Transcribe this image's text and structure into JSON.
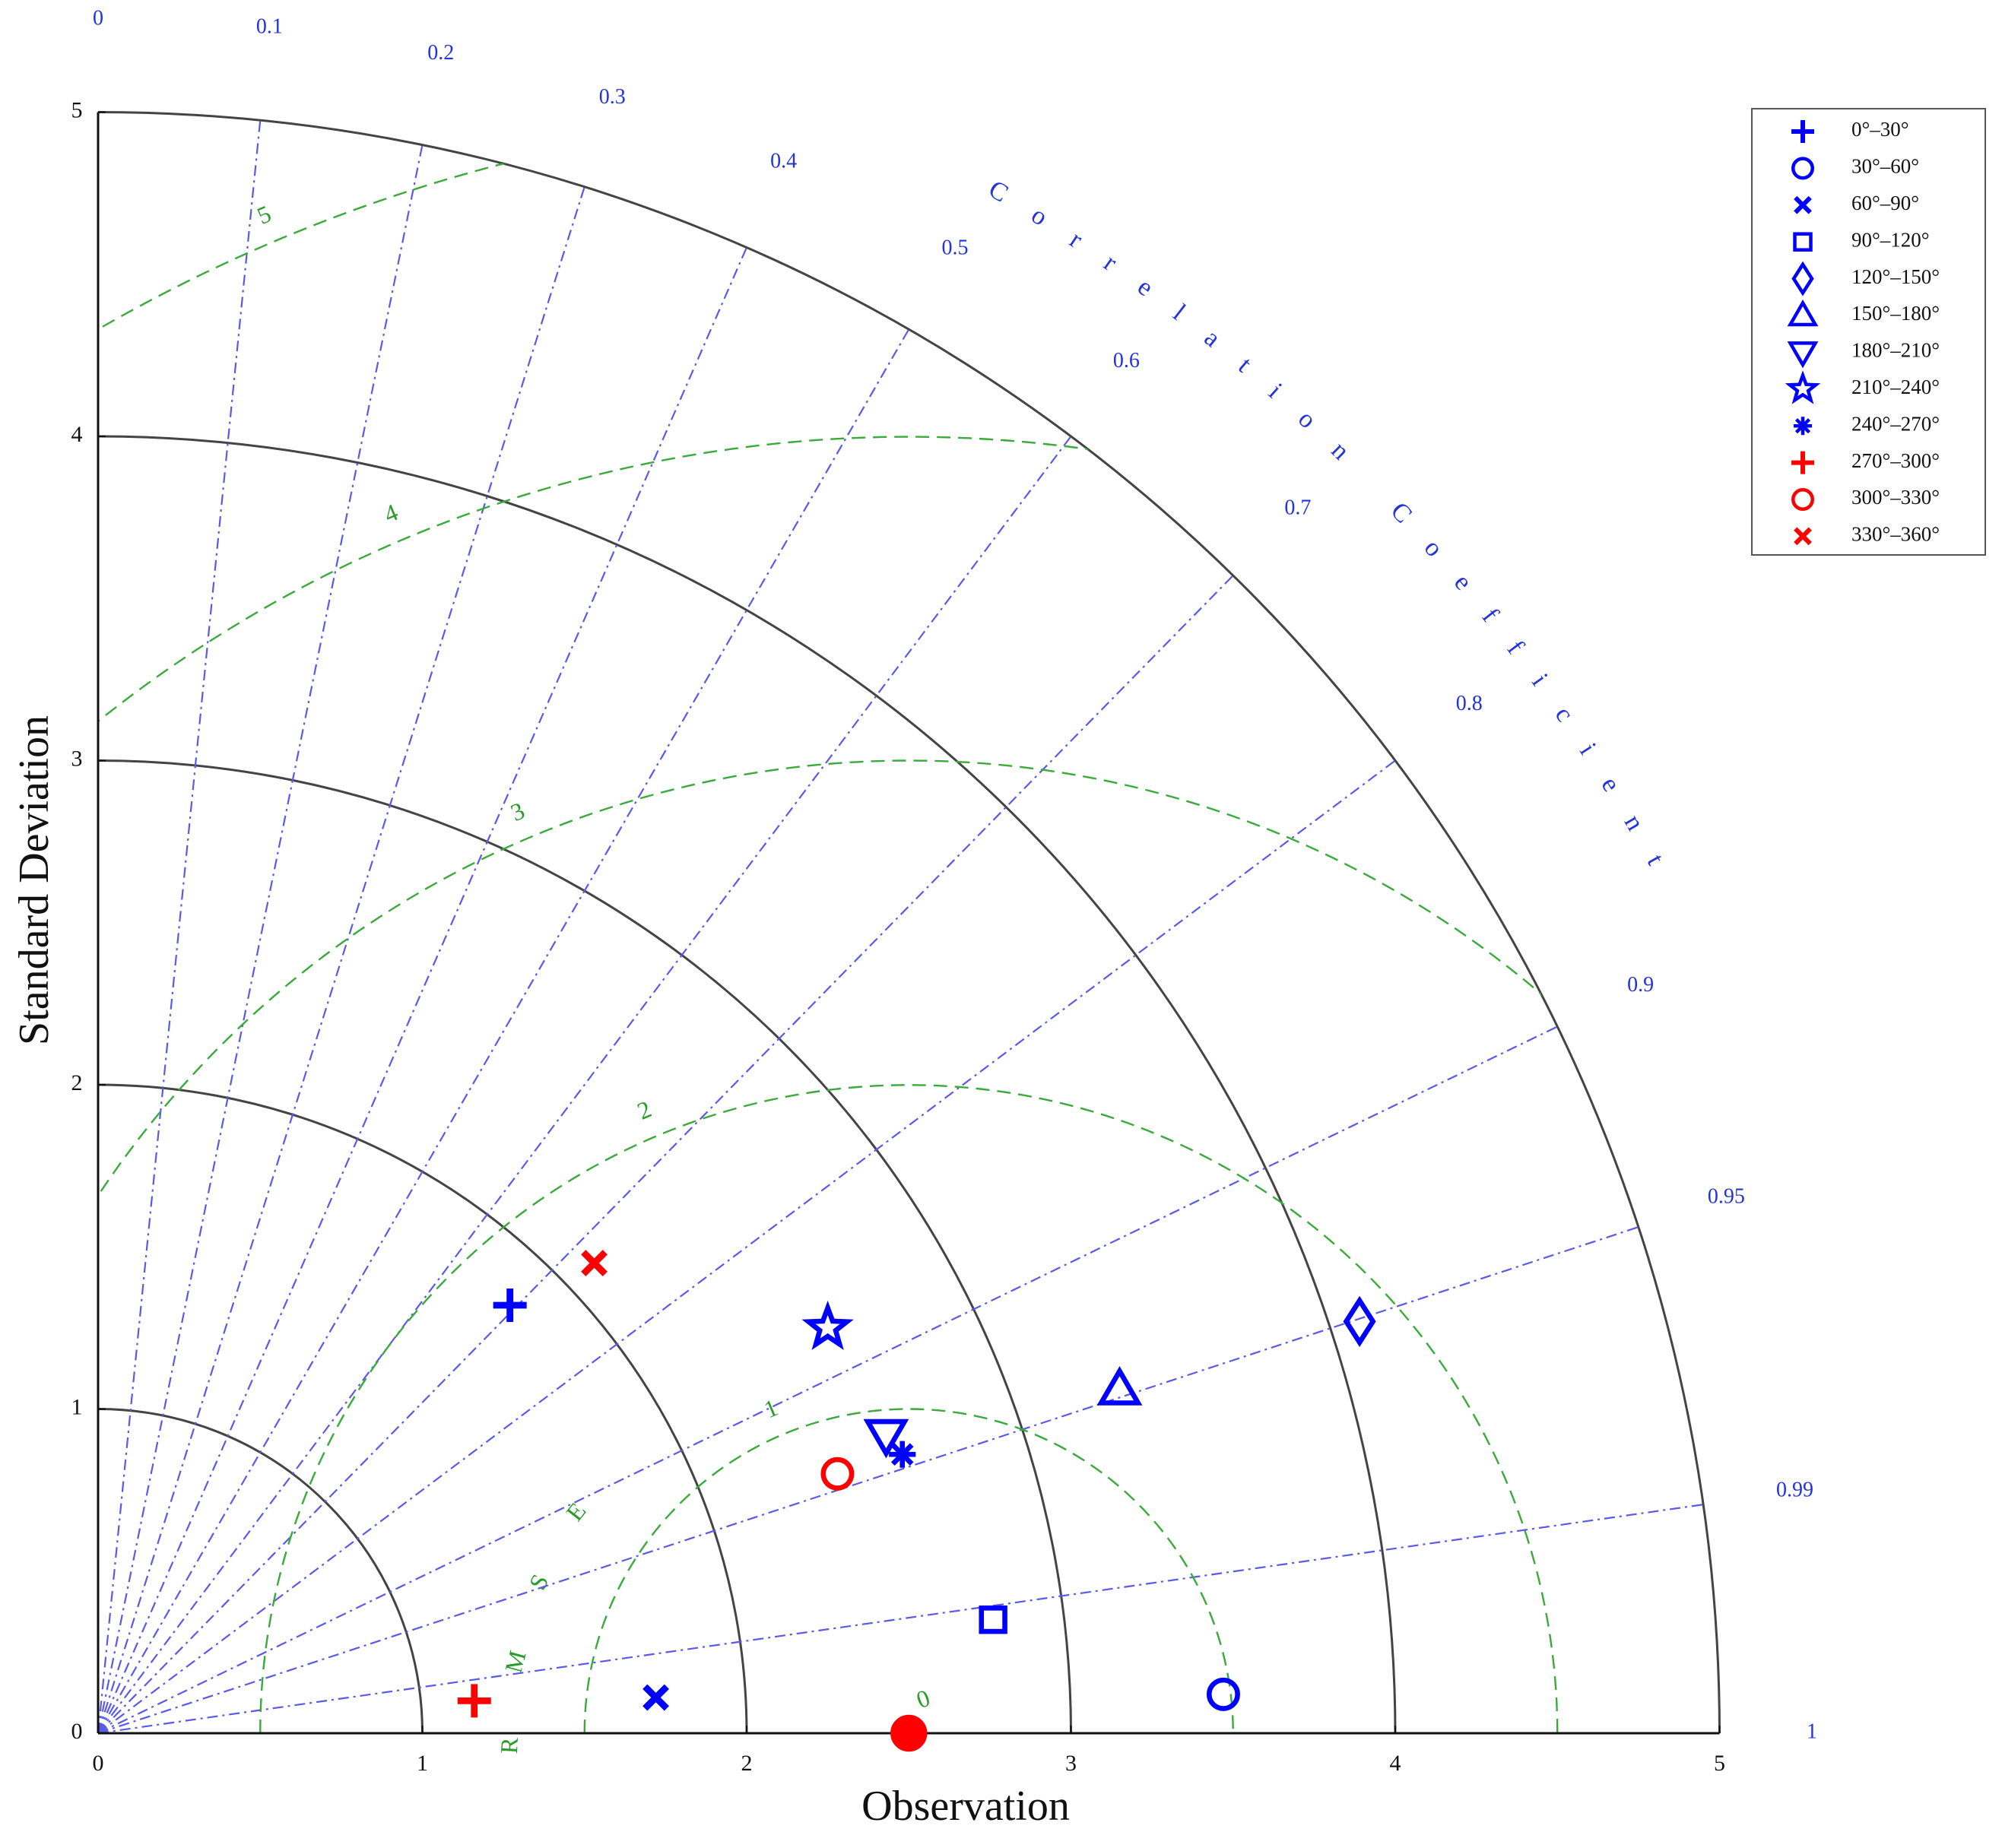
{
  "chart_data": {
    "type": "taylor",
    "xlabel": "Observation",
    "ylabel": "Standard Deviation",
    "xlim": [
      0,
      5
    ],
    "ylim": [
      0,
      5
    ],
    "xticks": [
      0,
      1,
      2,
      3,
      4,
      5
    ],
    "yticks": [
      0,
      1,
      2,
      3,
      4,
      5
    ],
    "std_arcs": [
      1,
      2,
      3,
      4,
      5
    ],
    "corr_label": "Correlation Coefficient",
    "corr_ticks": [
      0,
      0.1,
      0.2,
      0.3,
      0.4,
      0.5,
      0.6,
      0.7,
      0.8,
      0.9,
      0.95,
      0.99,
      1
    ],
    "rmse_label": "RMSE",
    "rmse_ticks": [
      0,
      1,
      2,
      3,
      4,
      5
    ],
    "reference": {
      "x": 2.5,
      "y": 0,
      "color": "#ff0000"
    },
    "series": [
      {
        "name": "0°–30°",
        "color": "#0000ff",
        "marker": "plus",
        "x": [
          1.27
        ],
        "values": [
          1.32
        ]
      },
      {
        "name": "30°–60°",
        "color": "#0000ff",
        "marker": "circle",
        "x": [
          3.47
        ],
        "values": [
          0.12
        ]
      },
      {
        "name": "60°–90°",
        "color": "#0000ff",
        "marker": "x",
        "x": [
          1.72
        ],
        "values": [
          0.11
        ]
      },
      {
        "name": "90°–120°",
        "color": "#0000ff",
        "marker": "square",
        "x": [
          2.76
        ],
        "values": [
          0.35
        ]
      },
      {
        "name": "120°–150°",
        "color": "#0000ff",
        "marker": "diamond",
        "x": [
          3.89
        ],
        "values": [
          1.27
        ]
      },
      {
        "name": "150°–180°",
        "color": "#0000ff",
        "marker": "triangle-up",
        "x": [
          3.15
        ],
        "values": [
          1.06
        ]
      },
      {
        "name": "180°–210°",
        "color": "#0000ff",
        "marker": "triangle-down",
        "x": [
          2.43
        ],
        "values": [
          0.92
        ]
      },
      {
        "name": "210°–240°",
        "color": "#0000ff",
        "marker": "star",
        "x": [
          2.25
        ],
        "values": [
          1.25
        ]
      },
      {
        "name": "240°–270°",
        "color": "#0000ff",
        "marker": "asterisk",
        "x": [
          2.48
        ],
        "values": [
          0.86
        ]
      },
      {
        "name": "270°–300°",
        "color": "#ff0000",
        "marker": "plus",
        "x": [
          1.16
        ],
        "values": [
          0.1
        ]
      },
      {
        "name": "300°–330°",
        "color": "#ff0000",
        "marker": "circle",
        "x": [
          2.28
        ],
        "values": [
          0.8
        ]
      },
      {
        "name": "330°–360°",
        "color": "#ff0000",
        "marker": "x",
        "x": [
          1.53
        ],
        "values": [
          1.45
        ]
      }
    ]
  }
}
